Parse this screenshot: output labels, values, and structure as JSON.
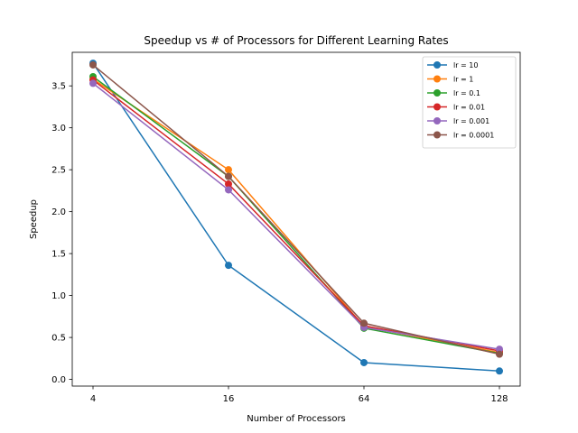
{
  "chart_data": {
    "type": "line",
    "title": "Speedup vs # of Processors for Different Learning Rates",
    "xlabel": "Number of Processors",
    "ylabel": "Speedup",
    "categories": [
      "4",
      "16",
      "64",
      "128"
    ],
    "ylim": [
      -0.08,
      3.9
    ],
    "yticks": [
      "0.0",
      "0.5",
      "1.0",
      "1.5",
      "2.0",
      "2.5",
      "3.0",
      "3.5"
    ],
    "grid": false,
    "legend_position": "top-right",
    "series": [
      {
        "name": "lr = 10",
        "color": "#1f77b4",
        "values": [
          3.77,
          1.36,
          0.2,
          0.1
        ]
      },
      {
        "name": "lr = 1",
        "color": "#ff7f0e",
        "values": [
          3.58,
          2.5,
          0.63,
          0.32
        ]
      },
      {
        "name": "lr = 0.1",
        "color": "#2ca02c",
        "values": [
          3.61,
          2.42,
          0.61,
          0.31
        ]
      },
      {
        "name": "lr = 0.01",
        "color": "#d62728",
        "values": [
          3.57,
          2.33,
          0.64,
          0.34
        ]
      },
      {
        "name": "lr = 0.001",
        "color": "#9467bd",
        "values": [
          3.53,
          2.26,
          0.62,
          0.36
        ]
      },
      {
        "name": "lr = 0.0001",
        "color": "#8c564b",
        "values": [
          3.75,
          2.42,
          0.67,
          0.3
        ]
      }
    ]
  }
}
